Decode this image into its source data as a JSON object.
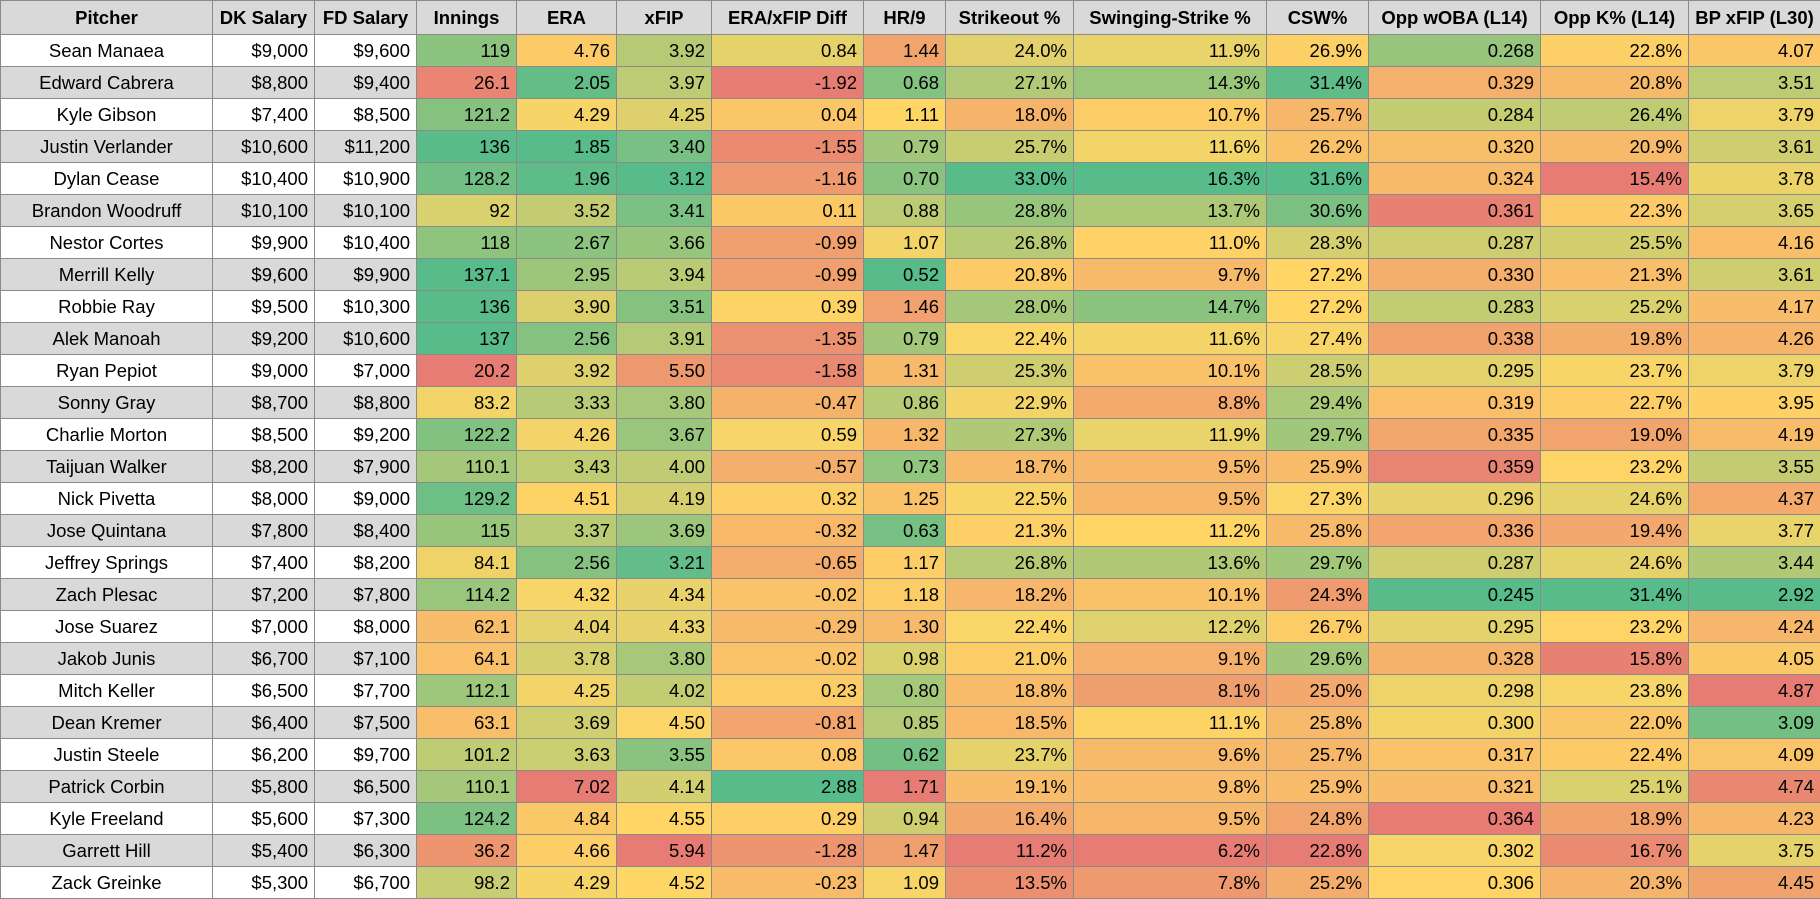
{
  "sheet": {
    "columns": [
      "Pitcher",
      "DK Salary",
      "FD Salary",
      "Innings",
      "ERA",
      "xFIP",
      "ERA/xFIP Diff",
      "HR/9",
      "Strikeout %",
      "Swinging-Strike %",
      "CSW%",
      "Opp wOBA (L14)",
      "Opp K% (L14)",
      "BP xFIP (L30)"
    ],
    "column_widths": [
      212,
      102,
      102,
      100,
      100,
      95,
      152,
      82,
      128,
      193,
      102,
      172,
      148,
      132
    ],
    "color_scale": {
      "low_color": "#e67c73",
      "mid_color": "#ffd666",
      "high_color": "#57bb8a",
      "higher_is_better": [
        true,
        null,
        null,
        true,
        false,
        false,
        true,
        false,
        true,
        true,
        true,
        false,
        true,
        false
      ],
      "range_min": [
        null,
        null,
        null,
        20.2,
        1.85,
        3.12,
        -1.92,
        0.52,
        11.2,
        6.2,
        22.8,
        0.245,
        15.4,
        2.92
      ],
      "range_max": [
        null,
        null,
        null,
        137.1,
        7.02,
        5.94,
        2.88,
        1.71,
        33.0,
        16.3,
        31.6,
        0.364,
        31.4,
        4.87
      ]
    },
    "rows": [
      {
        "cells": [
          "Sean Manaea",
          "$9,000",
          "$9,600",
          "119",
          "4.76",
          "3.92",
          "0.84",
          "1.44",
          "24.0%",
          "11.9%",
          "26.9%",
          "0.268",
          "22.8%",
          "4.07"
        ],
        "nums": [
          null,
          null,
          null,
          119,
          4.76,
          3.92,
          0.84,
          1.44,
          24.0,
          11.9,
          26.9,
          0.268,
          22.8,
          4.07
        ]
      },
      {
        "cells": [
          "Edward Cabrera",
          "$8,800",
          "$9,400",
          "26.1",
          "2.05",
          "3.97",
          "-1.92",
          "0.68",
          "27.1%",
          "14.3%",
          "31.4%",
          "0.329",
          "20.8%",
          "3.51"
        ],
        "nums": [
          null,
          null,
          null,
          26.1,
          2.05,
          3.97,
          -1.92,
          0.68,
          27.1,
          14.3,
          31.4,
          0.329,
          20.8,
          3.51
        ]
      },
      {
        "cells": [
          "Kyle Gibson",
          "$7,400",
          "$8,500",
          "121.2",
          "4.29",
          "4.25",
          "0.04",
          "1.11",
          "18.0%",
          "10.7%",
          "25.7%",
          "0.284",
          "26.4%",
          "3.79"
        ],
        "nums": [
          null,
          null,
          null,
          121.2,
          4.29,
          4.25,
          0.04,
          1.11,
          18.0,
          10.7,
          25.7,
          0.284,
          26.4,
          3.79
        ]
      },
      {
        "cells": [
          "Justin Verlander",
          "$10,600",
          "$11,200",
          "136",
          "1.85",
          "3.40",
          "-1.55",
          "0.79",
          "25.7%",
          "11.6%",
          "26.2%",
          "0.320",
          "20.9%",
          "3.61"
        ],
        "nums": [
          null,
          null,
          null,
          136,
          1.85,
          3.4,
          -1.55,
          0.79,
          25.7,
          11.6,
          26.2,
          0.32,
          20.9,
          3.61
        ]
      },
      {
        "cells": [
          "Dylan Cease",
          "$10,400",
          "$10,900",
          "128.2",
          "1.96",
          "3.12",
          "-1.16",
          "0.70",
          "33.0%",
          "16.3%",
          "31.6%",
          "0.324",
          "15.4%",
          "3.78"
        ],
        "nums": [
          null,
          null,
          null,
          128.2,
          1.96,
          3.12,
          -1.16,
          0.7,
          33.0,
          16.3,
          31.6,
          0.324,
          15.4,
          3.78
        ]
      },
      {
        "cells": [
          "Brandon Woodruff",
          "$10,100",
          "$10,100",
          "92",
          "3.52",
          "3.41",
          "0.11",
          "0.88",
          "28.8%",
          "13.7%",
          "30.6%",
          "0.361",
          "22.3%",
          "3.65"
        ],
        "nums": [
          null,
          null,
          null,
          92,
          3.52,
          3.41,
          0.11,
          0.88,
          28.8,
          13.7,
          30.6,
          0.361,
          22.3,
          3.65
        ]
      },
      {
        "cells": [
          "Nestor Cortes",
          "$9,900",
          "$10,400",
          "118",
          "2.67",
          "3.66",
          "-0.99",
          "1.07",
          "26.8%",
          "11.0%",
          "28.3%",
          "0.287",
          "25.5%",
          "4.16"
        ],
        "nums": [
          null,
          null,
          null,
          118,
          2.67,
          3.66,
          -0.99,
          1.07,
          26.8,
          11.0,
          28.3,
          0.287,
          25.5,
          4.16
        ]
      },
      {
        "cells": [
          "Merrill Kelly",
          "$9,600",
          "$9,900",
          "137.1",
          "2.95",
          "3.94",
          "-0.99",
          "0.52",
          "20.8%",
          "9.7%",
          "27.2%",
          "0.330",
          "21.3%",
          "3.61"
        ],
        "nums": [
          null,
          null,
          null,
          137.1,
          2.95,
          3.94,
          -0.99,
          0.52,
          20.8,
          9.7,
          27.2,
          0.33,
          21.3,
          3.61
        ]
      },
      {
        "cells": [
          "Robbie Ray",
          "$9,500",
          "$10,300",
          "136",
          "3.90",
          "3.51",
          "0.39",
          "1.46",
          "28.0%",
          "14.7%",
          "27.2%",
          "0.283",
          "25.2%",
          "4.17"
        ],
        "nums": [
          null,
          null,
          null,
          136,
          3.9,
          3.51,
          0.39,
          1.46,
          28.0,
          14.7,
          27.2,
          0.283,
          25.2,
          4.17
        ]
      },
      {
        "cells": [
          "Alek Manoah",
          "$9,200",
          "$10,600",
          "137",
          "2.56",
          "3.91",
          "-1.35",
          "0.79",
          "22.4%",
          "11.6%",
          "27.4%",
          "0.338",
          "19.8%",
          "4.26"
        ],
        "nums": [
          null,
          null,
          null,
          137,
          2.56,
          3.91,
          -1.35,
          0.79,
          22.4,
          11.6,
          27.4,
          0.338,
          19.8,
          4.26
        ]
      },
      {
        "cells": [
          "Ryan Pepiot",
          "$9,000",
          "$7,000",
          "20.2",
          "3.92",
          "5.50",
          "-1.58",
          "1.31",
          "25.3%",
          "10.1%",
          "28.5%",
          "0.295",
          "23.7%",
          "3.79"
        ],
        "nums": [
          null,
          null,
          null,
          20.2,
          3.92,
          5.5,
          -1.58,
          1.31,
          25.3,
          10.1,
          28.5,
          0.295,
          23.7,
          3.79
        ]
      },
      {
        "cells": [
          "Sonny Gray",
          "$8,700",
          "$8,800",
          "83.2",
          "3.33",
          "3.80",
          "-0.47",
          "0.86",
          "22.9%",
          "8.8%",
          "29.4%",
          "0.319",
          "22.7%",
          "3.95"
        ],
        "nums": [
          null,
          null,
          null,
          83.2,
          3.33,
          3.8,
          -0.47,
          0.86,
          22.9,
          8.8,
          29.4,
          0.319,
          22.7,
          3.95
        ]
      },
      {
        "cells": [
          "Charlie Morton",
          "$8,500",
          "$9,200",
          "122.2",
          "4.26",
          "3.67",
          "0.59",
          "1.32",
          "27.3%",
          "11.9%",
          "29.7%",
          "0.335",
          "19.0%",
          "4.19"
        ],
        "nums": [
          null,
          null,
          null,
          122.2,
          4.26,
          3.67,
          0.59,
          1.32,
          27.3,
          11.9,
          29.7,
          0.335,
          19.0,
          4.19
        ]
      },
      {
        "cells": [
          "Taijuan Walker",
          "$8,200",
          "$7,900",
          "110.1",
          "3.43",
          "4.00",
          "-0.57",
          "0.73",
          "18.7%",
          "9.5%",
          "25.9%",
          "0.359",
          "23.2%",
          "3.55"
        ],
        "nums": [
          null,
          null,
          null,
          110.1,
          3.43,
          4.0,
          -0.57,
          0.73,
          18.7,
          9.5,
          25.9,
          0.359,
          23.2,
          3.55
        ]
      },
      {
        "cells": [
          "Nick Pivetta",
          "$8,000",
          "$9,000",
          "129.2",
          "4.51",
          "4.19",
          "0.32",
          "1.25",
          "22.5%",
          "9.5%",
          "27.3%",
          "0.296",
          "24.6%",
          "4.37"
        ],
        "nums": [
          null,
          null,
          null,
          129.2,
          4.51,
          4.19,
          0.32,
          1.25,
          22.5,
          9.5,
          27.3,
          0.296,
          24.6,
          4.37
        ]
      },
      {
        "cells": [
          "Jose Quintana",
          "$7,800",
          "$8,400",
          "115",
          "3.37",
          "3.69",
          "-0.32",
          "0.63",
          "21.3%",
          "11.2%",
          "25.8%",
          "0.336",
          "19.4%",
          "3.77"
        ],
        "nums": [
          null,
          null,
          null,
          115,
          3.37,
          3.69,
          -0.32,
          0.63,
          21.3,
          11.2,
          25.8,
          0.336,
          19.4,
          3.77
        ]
      },
      {
        "cells": [
          "Jeffrey Springs",
          "$7,400",
          "$8,200",
          "84.1",
          "2.56",
          "3.21",
          "-0.65",
          "1.17",
          "26.8%",
          "13.6%",
          "29.7%",
          "0.287",
          "24.6%",
          "3.44"
        ],
        "nums": [
          null,
          null,
          null,
          84.1,
          2.56,
          3.21,
          -0.65,
          1.17,
          26.8,
          13.6,
          29.7,
          0.287,
          24.6,
          3.44
        ]
      },
      {
        "cells": [
          "Zach Plesac",
          "$7,200",
          "$7,800",
          "114.2",
          "4.32",
          "4.34",
          "-0.02",
          "1.18",
          "18.2%",
          "10.1%",
          "24.3%",
          "0.245",
          "31.4%",
          "2.92"
        ],
        "nums": [
          null,
          null,
          null,
          114.2,
          4.32,
          4.34,
          -0.02,
          1.18,
          18.2,
          10.1,
          24.3,
          0.245,
          31.4,
          2.92
        ]
      },
      {
        "cells": [
          "Jose Suarez",
          "$7,000",
          "$8,000",
          "62.1",
          "4.04",
          "4.33",
          "-0.29",
          "1.30",
          "22.4%",
          "12.2%",
          "26.7%",
          "0.295",
          "23.2%",
          "4.24"
        ],
        "nums": [
          null,
          null,
          null,
          62.1,
          4.04,
          4.33,
          -0.29,
          1.3,
          22.4,
          12.2,
          26.7,
          0.295,
          23.2,
          4.24
        ]
      },
      {
        "cells": [
          "Jakob Junis",
          "$6,700",
          "$7,100",
          "64.1",
          "3.78",
          "3.80",
          "-0.02",
          "0.98",
          "21.0%",
          "9.1%",
          "29.6%",
          "0.328",
          "15.8%",
          "4.05"
        ],
        "nums": [
          null,
          null,
          null,
          64.1,
          3.78,
          3.8,
          -0.02,
          0.98,
          21.0,
          9.1,
          29.6,
          0.328,
          15.8,
          4.05
        ]
      },
      {
        "cells": [
          "Mitch Keller",
          "$6,500",
          "$7,700",
          "112.1",
          "4.25",
          "4.02",
          "0.23",
          "0.80",
          "18.8%",
          "8.1%",
          "25.0%",
          "0.298",
          "23.8%",
          "4.87"
        ],
        "nums": [
          null,
          null,
          null,
          112.1,
          4.25,
          4.02,
          0.23,
          0.8,
          18.8,
          8.1,
          25.0,
          0.298,
          23.8,
          4.87
        ]
      },
      {
        "cells": [
          "Dean Kremer",
          "$6,400",
          "$7,500",
          "63.1",
          "3.69",
          "4.50",
          "-0.81",
          "0.85",
          "18.5%",
          "11.1%",
          "25.8%",
          "0.300",
          "22.0%",
          "3.09"
        ],
        "nums": [
          null,
          null,
          null,
          63.1,
          3.69,
          4.5,
          -0.81,
          0.85,
          18.5,
          11.1,
          25.8,
          0.3,
          22.0,
          3.09
        ]
      },
      {
        "cells": [
          "Justin Steele",
          "$6,200",
          "$9,700",
          "101.2",
          "3.63",
          "3.55",
          "0.08",
          "0.62",
          "23.7%",
          "9.6%",
          "25.7%",
          "0.317",
          "22.4%",
          "4.09"
        ],
        "nums": [
          null,
          null,
          null,
          101.2,
          3.63,
          3.55,
          0.08,
          0.62,
          23.7,
          9.6,
          25.7,
          0.317,
          22.4,
          4.09
        ]
      },
      {
        "cells": [
          "Patrick Corbin",
          "$5,800",
          "$6,500",
          "110.1",
          "7.02",
          "4.14",
          "2.88",
          "1.71",
          "19.1%",
          "9.8%",
          "25.9%",
          "0.321",
          "25.1%",
          "4.74"
        ],
        "nums": [
          null,
          null,
          null,
          110.1,
          7.02,
          4.14,
          2.88,
          1.71,
          19.1,
          9.8,
          25.9,
          0.321,
          25.1,
          4.74
        ]
      },
      {
        "cells": [
          "Kyle Freeland",
          "$5,600",
          "$7,300",
          "124.2",
          "4.84",
          "4.55",
          "0.29",
          "0.94",
          "16.4%",
          "9.5%",
          "24.8%",
          "0.364",
          "18.9%",
          "4.23"
        ],
        "nums": [
          null,
          null,
          null,
          124.2,
          4.84,
          4.55,
          0.29,
          0.94,
          16.4,
          9.5,
          24.8,
          0.364,
          18.9,
          4.23
        ]
      },
      {
        "cells": [
          "Garrett Hill",
          "$5,400",
          "$6,300",
          "36.2",
          "4.66",
          "5.94",
          "-1.28",
          "1.47",
          "11.2%",
          "6.2%",
          "22.8%",
          "0.302",
          "16.7%",
          "3.75"
        ],
        "nums": [
          null,
          null,
          null,
          36.2,
          4.66,
          5.94,
          -1.28,
          1.47,
          11.2,
          6.2,
          22.8,
          0.302,
          16.7,
          3.75
        ]
      },
      {
        "cells": [
          "Zack Greinke",
          "$5,300",
          "$6,700",
          "98.2",
          "4.29",
          "4.52",
          "-0.23",
          "1.09",
          "13.5%",
          "7.8%",
          "25.2%",
          "0.306",
          "20.3%",
          "4.45"
        ],
        "nums": [
          null,
          null,
          null,
          98.2,
          4.29,
          4.52,
          -0.23,
          1.09,
          13.5,
          7.8,
          25.2,
          0.306,
          20.3,
          4.45
        ]
      }
    ]
  }
}
